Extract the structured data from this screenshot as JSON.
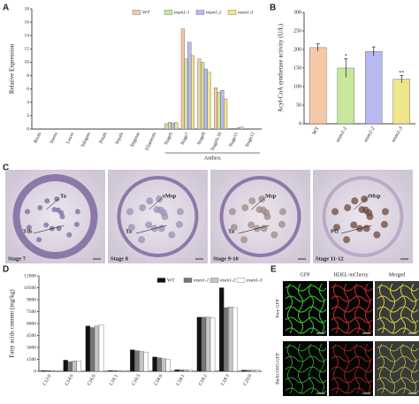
{
  "chart_data": [
    {
      "type": "bar",
      "label": "A",
      "ylabel": "Relative  Expression",
      "categories": [
        "Roots",
        "Stems",
        "Leave",
        "Siliques",
        "Petals",
        "Sepals",
        "Stigmas",
        "Filaments",
        "Stage6",
        "Stage7",
        "Stage8",
        "Stage9-10",
        "Stage11",
        "Stage12"
      ],
      "group_label": "Anthers",
      "series": [
        {
          "name": "WT",
          "color": "#f6c9a6",
          "values": [
            0,
            0,
            0,
            0,
            0,
            0,
            0,
            0,
            0.8,
            15,
            10.5,
            6.2,
            0.1,
            0
          ]
        },
        {
          "name": "msm1-1",
          "color": "#c8e69c",
          "values": [
            0,
            0,
            0,
            0,
            0,
            0,
            0,
            0,
            1.0,
            10.5,
            10,
            5.5,
            0.1,
            0
          ]
        },
        {
          "name": "msm1-2",
          "color": "#b9b9f2",
          "values": [
            0,
            0,
            0,
            0,
            0,
            0,
            0,
            0,
            0.9,
            13,
            9,
            5.8,
            0.2,
            0
          ]
        },
        {
          "name": "msm1-3",
          "color": "#efe58a",
          "values": [
            0,
            0,
            0,
            0,
            0,
            0,
            0,
            0,
            1.0,
            11,
            8.5,
            4.5,
            0.3,
            0
          ]
        }
      ],
      "ylim": [
        0,
        18
      ],
      "yticks": [
        0,
        2,
        4,
        6,
        8,
        10,
        12,
        14,
        16,
        18
      ],
      "legend": "top-right"
    },
    {
      "type": "bar",
      "label": "B",
      "ylabel": "Acyl-CoA synthetase activity (U/L)",
      "categories": [
        "WT",
        "msm1-1",
        "msm1-2",
        "msm1-3"
      ],
      "values": [
        205,
        150,
        195,
        120
      ],
      "errors": [
        10,
        25,
        12,
        10
      ],
      "significance": [
        null,
        "*",
        null,
        "**"
      ],
      "colors": [
        "#f6c9a6",
        "#c8e69c",
        "#b9b9f2",
        "#efe58a"
      ],
      "ylim": [
        0,
        300
      ],
      "yticks": [
        0,
        50,
        100,
        150,
        200,
        250,
        300
      ]
    },
    {
      "type": "bar",
      "label": "D",
      "ylabel": "Fatty acids content (mg/kg)",
      "categories": [
        "C12:0",
        "C14:0",
        "C16:0",
        "C16:1",
        "C16:3",
        "C18:0",
        "C18:1",
        "C18:2",
        "C18:3",
        "C20:0"
      ],
      "series": [
        {
          "name": "WT",
          "color": "#111111",
          "values": [
            100,
            1400,
            5700,
            100,
            2700,
            1800,
            200,
            6800,
            10500,
            150
          ]
        },
        {
          "name": "msm1-1",
          "color": "#777777",
          "values": [
            100,
            1200,
            5500,
            100,
            2600,
            1700,
            180,
            6800,
            8000,
            150
          ]
        },
        {
          "name": "msm1-2",
          "color": "#c4c4c4",
          "values": [
            100,
            1300,
            5700,
            100,
            2500,
            1600,
            180,
            6800,
            8100,
            150
          ]
        },
        {
          "name": "msm1-3",
          "color": "#ffffff",
          "values": [
            100,
            1300,
            5800,
            100,
            2400,
            1500,
            180,
            6700,
            8000,
            150
          ]
        }
      ],
      "ylim": [
        0,
        12000
      ],
      "yticks": [
        0,
        1500,
        3000,
        4500,
        6000,
        7500,
        9000,
        10500,
        12000
      ],
      "legend": "top-right"
    }
  ],
  "micrographs": {
    "label": "C",
    "images": [
      {
        "stage": "Stage 7",
        "annotations": [
          "Ta",
          "Tds"
        ]
      },
      {
        "stage": "Stage 8",
        "annotations": [
          "eMsp",
          "Ta"
        ]
      },
      {
        "stage": "Stage 9-10",
        "annotations": [
          "Msp",
          "Ta"
        ]
      },
      {
        "stage": "Stage 11-12",
        "annotations": [
          "tMsp",
          "PG"
        ]
      }
    ]
  },
  "confocal": {
    "label": "E",
    "columns": [
      "GFP",
      "HDEL-mCherry",
      "Merged"
    ],
    "rows": [
      "Free GFP",
      "BnACOS5-GFP"
    ]
  }
}
